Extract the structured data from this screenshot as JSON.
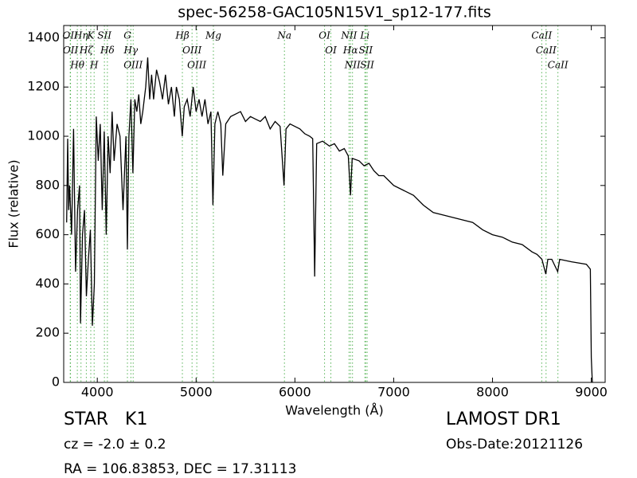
{
  "chart_data": {
    "type": "line",
    "title": "spec-56258-GAC105N15V1_sp12-177.fits",
    "x_label": "Wavelength (Å)",
    "y_label": "Flux (relative)",
    "xlim": [
      3660,
      9140
    ],
    "ylim": [
      0,
      1450
    ],
    "xticks": [
      4000,
      5000,
      6000,
      7000,
      8000,
      9000
    ],
    "yticks": [
      0,
      200,
      400,
      600,
      800,
      1000,
      1200,
      1400
    ],
    "color": "#000000",
    "line_color": "#2ca02c",
    "x": [
      3690,
      3700,
      3710,
      3720,
      3740,
      3760,
      3780,
      3800,
      3820,
      3830,
      3850,
      3870,
      3890,
      3910,
      3930,
      3950,
      3970,
      3990,
      4010,
      4030,
      4050,
      4070,
      4090,
      4110,
      4130,
      4150,
      4170,
      4200,
      4230,
      4260,
      4290,
      4305,
      4320,
      4340,
      4360,
      4380,
      4400,
      4420,
      4440,
      4460,
      4490,
      4510,
      4530,
      4550,
      4570,
      4600,
      4630,
      4660,
      4690,
      4720,
      4750,
      4780,
      4800,
      4830,
      4860,
      4880,
      4910,
      4940,
      4970,
      5000,
      5030,
      5060,
      5090,
      5120,
      5150,
      5170,
      5190,
      5220,
      5250,
      5270,
      5300,
      5350,
      5400,
      5450,
      5500,
      5550,
      5600,
      5650,
      5700,
      5750,
      5800,
      5850,
      5890,
      5910,
      5950,
      6000,
      6050,
      6100,
      6150,
      6180,
      6200,
      6220,
      6280,
      6350,
      6400,
      6450,
      6500,
      6540,
      6563,
      6580,
      6650,
      6700,
      6750,
      6800,
      6850,
      6900,
      6950,
      7000,
      7100,
      7200,
      7300,
      7400,
      7500,
      7600,
      7700,
      7800,
      7900,
      8000,
      8100,
      8200,
      8300,
      8400,
      8450,
      8500,
      8540,
      8560,
      8600,
      8660,
      8680,
      8800,
      8950,
      8990,
      9000,
      9010
    ],
    "values": [
      650,
      990,
      700,
      800,
      600,
      1030,
      450,
      700,
      800,
      240,
      600,
      700,
      350,
      500,
      620,
      230,
      400,
      1080,
      900,
      1050,
      700,
      1020,
      600,
      1000,
      850,
      1100,
      900,
      1050,
      1000,
      700,
      1000,
      540,
      1000,
      1150,
      850,
      1150,
      1100,
      1170,
      1050,
      1100,
      1200,
      1320,
      1150,
      1250,
      1150,
      1270,
      1220,
      1150,
      1250,
      1130,
      1200,
      1080,
      1200,
      1150,
      1000,
      1120,
      1150,
      1080,
      1200,
      1100,
      1150,
      1080,
      1150,
      1050,
      1100,
      720,
      1050,
      1100,
      1050,
      840,
      1050,
      1080,
      1090,
      1100,
      1060,
      1080,
      1070,
      1060,
      1080,
      1030,
      1060,
      1040,
      800,
      1030,
      1050,
      1040,
      1030,
      1010,
      1000,
      990,
      430,
      970,
      980,
      960,
      970,
      940,
      950,
      920,
      760,
      910,
      900,
      880,
      890,
      860,
      840,
      840,
      820,
      800,
      780,
      760,
      720,
      690,
      680,
      670,
      660,
      650,
      620,
      600,
      590,
      570,
      560,
      530,
      520,
      500,
      440,
      500,
      500,
      450,
      500,
      490,
      480,
      460,
      100,
      0
    ],
    "spectral_lines": [
      {
        "label": "OII",
        "wavelength": 3726
      },
      {
        "label": "OII",
        "wavelength": 3729
      },
      {
        "label": "Hθ",
        "wavelength": 3798
      },
      {
        "label": "Hη",
        "wavelength": 3835
      },
      {
        "label": "Hζ",
        "wavelength": 3889
      },
      {
        "label": "K",
        "wavelength": 3934
      },
      {
        "label": "H",
        "wavelength": 3968
      },
      {
        "label": "SII",
        "wavelength": 4072
      },
      {
        "label": "Hδ",
        "wavelength": 4102
      },
      {
        "label": "G",
        "wavelength": 4305
      },
      {
        "label": "Hγ",
        "wavelength": 4340
      },
      {
        "label": "OIII",
        "wavelength": 4363
      },
      {
        "label": "Hβ",
        "wavelength": 4861
      },
      {
        "label": "OIII",
        "wavelength": 4959
      },
      {
        "label": "OIII",
        "wavelength": 5007
      },
      {
        "label": "Mg",
        "wavelength": 5175
      },
      {
        "label": "Na",
        "wavelength": 5894
      },
      {
        "label": "OI",
        "wavelength": 6300
      },
      {
        "label": "OI",
        "wavelength": 6364
      },
      {
        "label": "NII",
        "wavelength": 6548
      },
      {
        "label": "Hα",
        "wavelength": 6563
      },
      {
        "label": "NII",
        "wavelength": 6583
      },
      {
        "label": "Li",
        "wavelength": 6708
      },
      {
        "label": "SII",
        "wavelength": 6717
      },
      {
        "label": "SII",
        "wavelength": 6731
      },
      {
        "label": "CaII",
        "wavelength": 8498
      },
      {
        "label": "CaII",
        "wavelength": 8542
      },
      {
        "label": "CaII",
        "wavelength": 8662
      }
    ]
  },
  "footer": {
    "class": "STAR   K1",
    "redshift": "cz = -2.0 ± 0.2",
    "coords": "RA = 106.83853, DEC = 17.31113",
    "survey": "LAMOST DR1",
    "obs_date": "Obs-Date:20121126"
  }
}
